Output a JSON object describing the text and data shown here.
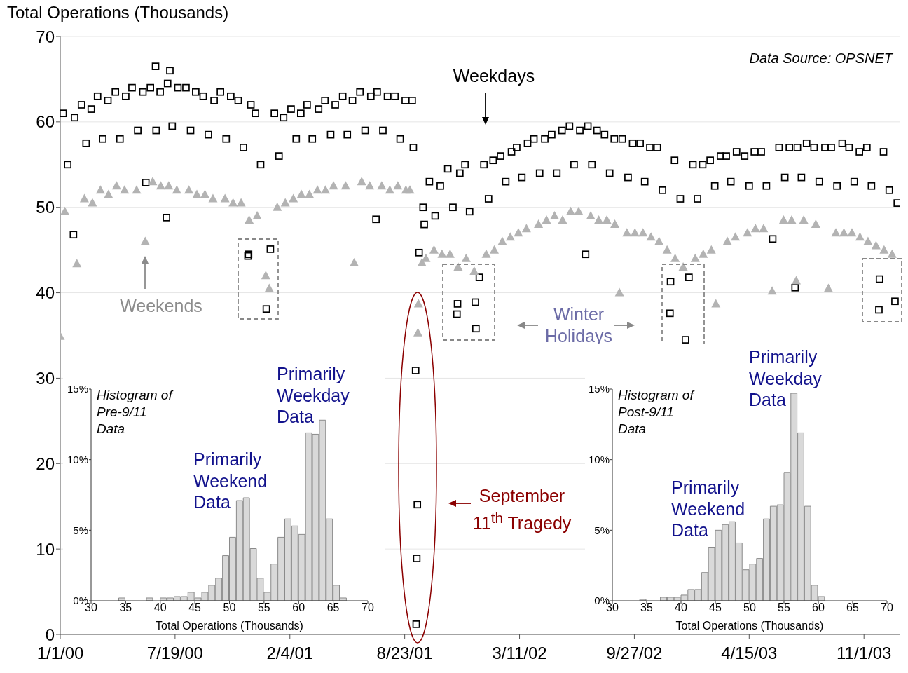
{
  "chart_data": [
    {
      "type": "scatter",
      "ylabel": "Total Operations (Thousands)",
      "xlim": [
        "2000-01-01",
        "2004-01-02"
      ],
      "ylim": [
        0,
        70
      ],
      "yticks": [
        0,
        10,
        20,
        30,
        40,
        50,
        60,
        70
      ],
      "xticks": [
        {
          "value": "2000-01-01",
          "label": "1/1/00"
        },
        {
          "value": "2000-07-19",
          "label": "7/19/00"
        },
        {
          "value": "2001-02-04",
          "label": "2/4/01"
        },
        {
          "value": "2001-08-23",
          "label": "8/23/01"
        },
        {
          "value": "2002-03-11",
          "label": "3/11/02"
        },
        {
          "value": "2002-09-27",
          "label": "9/27/02"
        },
        {
          "value": "2003-04-15",
          "label": "4/15/03"
        },
        {
          "value": "2003-11-01",
          "label": "11/1/03"
        }
      ],
      "grid": "y",
      "annotations": [
        "Data Source: OPSNET",
        "Weekdays",
        "Weekends",
        "Winter\nHolidays",
        "September\n11$^{th}$ Tragedy"
      ],
      "series": [
        {
          "color": "#000000",
          "marker": "square",
          "x": [
            "2000-01-06",
            "2000-01-14",
            "2000-01-24",
            "2000-01-26",
            "2000-02-07",
            "2000-02-15",
            "2000-02-24",
            "2000-03-06",
            "2000-03-15",
            "2000-03-24",
            "2000-04-06",
            "2000-04-14",
            "2000-04-24",
            "2000-05-05",
            "2000-05-15",
            "2000-05-24",
            "2000-05-29",
            "2000-06-06",
            "2000-06-15",
            "2000-06-16",
            "2000-06-23",
            "2000-07-04",
            "2000-07-06",
            "2000-07-10",
            "2000-07-14",
            "2000-07-24",
            "2000-08-07",
            "2000-08-15",
            "2000-08-24",
            "2000-09-06",
            "2000-09-15",
            "2000-09-25",
            "2000-10-06",
            "2000-10-16",
            "2000-10-24",
            "2000-11-06",
            "2000-11-15",
            "2000-11-23",
            "2000-11-24",
            "2000-11-28",
            "2000-12-06",
            "2000-12-15",
            "2000-12-25",
            "2001-01-01",
            "2001-01-08",
            "2001-01-16",
            "2001-01-24",
            "2001-02-06",
            "2001-02-15",
            "2001-02-23",
            "2001-03-06",
            "2001-03-15",
            "2001-03-26",
            "2001-04-06",
            "2001-04-16",
            "2001-04-24",
            "2001-05-07",
            "2001-05-15",
            "2001-05-24",
            "2001-06-06",
            "2001-06-15",
            "2001-06-25",
            "2001-07-04",
            "2001-07-06",
            "2001-07-16",
            "2001-07-24",
            "2001-08-06",
            "2001-08-15",
            "2001-08-24",
            "2001-09-05",
            "2001-09-07",
            "2001-09-11",
            "2001-09-12",
            "2001-09-13",
            "2001-09-14",
            "2001-09-17",
            "2001-09-24",
            "2001-09-26",
            "2001-10-05",
            "2001-10-15",
            "2001-10-24",
            "2001-11-06",
            "2001-11-15",
            "2001-11-22",
            "2001-11-23",
            "2001-11-27",
            "2001-12-06",
            "2001-12-14",
            "2001-12-24",
            "2001-12-25",
            "2001-12-31",
            "2002-01-08",
            "2002-01-16",
            "2002-01-24",
            "2002-02-06",
            "2002-02-15",
            "2002-02-25",
            "2002-03-06",
            "2002-03-15",
            "2002-03-25",
            "2002-04-05",
            "2002-04-15",
            "2002-04-24",
            "2002-05-06",
            "2002-05-15",
            "2002-05-24",
            "2002-06-06",
            "2002-06-14",
            "2002-06-24",
            "2002-07-04",
            "2002-07-08",
            "2002-07-15",
            "2002-07-24",
            "2002-08-06",
            "2002-08-15",
            "2002-08-23",
            "2002-09-06",
            "2002-09-16",
            "2002-09-24",
            "2002-10-07",
            "2002-10-15",
            "2002-10-24",
            "2002-11-06",
            "2002-11-15",
            "2002-11-28",
            "2002-11-29",
            "2002-12-06",
            "2002-12-16",
            "2002-12-25",
            "2002-12-31",
            "2003-01-07",
            "2003-01-15",
            "2003-01-24",
            "2003-02-06",
            "2003-02-14",
            "2003-02-24",
            "2003-03-06",
            "2003-03-14",
            "2003-03-24",
            "2003-04-07",
            "2003-04-15",
            "2003-04-24",
            "2003-05-06",
            "2003-05-15",
            "2003-05-26",
            "2003-06-06",
            "2003-06-16",
            "2003-06-24",
            "2003-07-04",
            "2003-07-08",
            "2003-07-15",
            "2003-07-24",
            "2003-08-06",
            "2003-08-15",
            "2003-08-25",
            "2003-09-05",
            "2003-09-15",
            "2003-09-24",
            "2003-10-06",
            "2003-10-15",
            "2003-10-24",
            "2003-11-06",
            "2003-11-14",
            "2003-11-27",
            "2003-11-28",
            "2003-12-05",
            "2003-12-15",
            "2003-12-25",
            "2003-12-29"
          ],
          "values": [
            61,
            55,
            46.8,
            60.5,
            62,
            57.5,
            61.5,
            63,
            58,
            62.5,
            63.5,
            58,
            63,
            64,
            59,
            63.5,
            52.9,
            64,
            66.5,
            59,
            63.5,
            48.8,
            64.5,
            66,
            59.5,
            64,
            64,
            59,
            63.5,
            63,
            58.5,
            62.5,
            63.5,
            58,
            63,
            62.5,
            57,
            44.3,
            44.5,
            62,
            61,
            55,
            38.1,
            45.1,
            61,
            56,
            60.5,
            61.5,
            58,
            61,
            62,
            58,
            61.5,
            62.5,
            58.5,
            62,
            63,
            58.5,
            62.5,
            63.5,
            59,
            63,
            48.6,
            63.5,
            59,
            63,
            63,
            58,
            62.5,
            62.5,
            57,
            30.9,
            1.2,
            8.9,
            15.2,
            44.7,
            50,
            48,
            53,
            49,
            52.5,
            54.5,
            50,
            37.5,
            38.7,
            54,
            55,
            49.5,
            38.9,
            35.8,
            41.8,
            55,
            51,
            55.5,
            56,
            53,
            56.5,
            57,
            53.5,
            57.5,
            58,
            54,
            58,
            58.5,
            54,
            59,
            59.5,
            55,
            59,
            44.5,
            59.5,
            55,
            59,
            58.5,
            54,
            58,
            58,
            53.5,
            57.5,
            57.5,
            53,
            57,
            57,
            52,
            37.6,
            41.3,
            55.5,
            51,
            34.5,
            41.8,
            55,
            51,
            55,
            55.5,
            52.5,
            56,
            56,
            53,
            56.5,
            56,
            52.5,
            56.5,
            56.5,
            52.5,
            46.3,
            57,
            53.5,
            57,
            40.6,
            57,
            53.5,
            57.5,
            57,
            53,
            57,
            57,
            52.5,
            57.5,
            57,
            53,
            56.5,
            57,
            52.5,
            38,
            41.6,
            56.5,
            52,
            39,
            50.5
          ]
        },
        {
          "color": "#b3b3b3",
          "marker": "triangle",
          "x": [
            "2000-01-01",
            "2000-01-09",
            "2000-01-30",
            "2000-02-12",
            "2000-02-26",
            "2000-03-11",
            "2000-03-25",
            "2000-04-08",
            "2000-04-22",
            "2000-05-13",
            "2000-05-28",
            "2000-06-10",
            "2000-06-24",
            "2000-07-08",
            "2000-07-22",
            "2000-08-12",
            "2000-08-26",
            "2000-09-09",
            "2000-09-23",
            "2000-10-14",
            "2000-10-28",
            "2000-11-11",
            "2000-11-25",
            "2000-12-09",
            "2000-12-24",
            "2000-12-30",
            "2001-01-13",
            "2001-01-27",
            "2001-02-10",
            "2001-02-24",
            "2001-03-10",
            "2001-03-24",
            "2001-04-07",
            "2001-04-21",
            "2001-05-12",
            "2001-05-27",
            "2001-06-09",
            "2001-06-23",
            "2001-07-14",
            "2001-07-28",
            "2001-08-11",
            "2001-08-25",
            "2001-09-01",
            "2001-09-15",
            "2001-09-16",
            "2001-09-22",
            "2001-09-29",
            "2001-10-13",
            "2001-10-27",
            "2001-11-10",
            "2001-11-24",
            "2001-12-08",
            "2001-12-22",
            "2002-01-12",
            "2002-01-26",
            "2002-02-09",
            "2002-02-23",
            "2002-03-09",
            "2002-03-23",
            "2002-04-13",
            "2002-04-27",
            "2002-05-11",
            "2002-05-25",
            "2002-06-08",
            "2002-06-22",
            "2002-07-13",
            "2002-07-27",
            "2002-08-10",
            "2002-08-24",
            "2002-09-01",
            "2002-09-14",
            "2002-09-28",
            "2002-10-12",
            "2002-10-26",
            "2002-11-09",
            "2002-11-23",
            "2002-12-07",
            "2002-12-21",
            "2003-01-11",
            "2003-01-25",
            "2003-02-08",
            "2003-02-16",
            "2003-03-08",
            "2003-03-22",
            "2003-04-12",
            "2003-04-26",
            "2003-05-10",
            "2003-05-25",
            "2003-06-14",
            "2003-06-28",
            "2003-07-06",
            "2003-07-19",
            "2003-08-09",
            "2003-08-31",
            "2003-09-13",
            "2003-09-27",
            "2003-10-11",
            "2003-10-25",
            "2003-11-08",
            "2003-11-22",
            "2003-12-06",
            "2003-12-20"
          ],
          "values": [
            34.9,
            49.5,
            43.4,
            51,
            50.5,
            52,
            51.5,
            52.5,
            52,
            52,
            46,
            53,
            52.5,
            52.5,
            52,
            52,
            51.5,
            51.5,
            51,
            51,
            50.5,
            50.5,
            48.5,
            49,
            42,
            40.5,
            50,
            50.5,
            51,
            51.5,
            51.5,
            52,
            52,
            52.5,
            52.5,
            43.5,
            53,
            52.5,
            52.5,
            52,
            52.5,
            52,
            52,
            35.3,
            38.7,
            43.5,
            44,
            45,
            44.5,
            44.5,
            43,
            44,
            42.5,
            44.5,
            45,
            46,
            46.5,
            47,
            47.5,
            48,
            48.5,
            49,
            48.5,
            49.5,
            49.5,
            49,
            48.5,
            48.5,
            48,
            40,
            47,
            47,
            47,
            46.5,
            46,
            45,
            44,
            43,
            44,
            44.5,
            45,
            38.7,
            46,
            46.5,
            47,
            47.5,
            47.5,
            40.2,
            48.5,
            48.5,
            41.4,
            48.5,
            48,
            40.5,
            47,
            47,
            47,
            46.5,
            46,
            45.5,
            45,
            44.5
          ]
        }
      ]
    },
    {
      "type": "histogram",
      "title": "Histogram of\nPre-9/11\nData",
      "xlabel": "Total Operations (Thousands)",
      "color": "#d9d9d9",
      "xlim": [
        30,
        70
      ],
      "xticks": [
        30,
        35,
        40,
        45,
        50,
        55,
        60,
        65,
        70
      ],
      "ylim": [
        0,
        15
      ],
      "yticks": [
        {
          "value": 0,
          "label": "0%"
        },
        {
          "value": 5,
          "label": "5%"
        },
        {
          "value": 10,
          "label": "10%"
        },
        {
          "value": 15,
          "label": "15%"
        }
      ],
      "annotations": [
        "Primarily\nWeekend\nData",
        "Primarily\nWeekday\nData"
      ],
      "bins": [
        30,
        31,
        32,
        33,
        34,
        35,
        36,
        37,
        38,
        39,
        40,
        41,
        42,
        43,
        44,
        45,
        46,
        47,
        48,
        49,
        50,
        51,
        52,
        53,
        54,
        55,
        56,
        57,
        58,
        59,
        60,
        61,
        62,
        63,
        64,
        65,
        66,
        67,
        68,
        69,
        70
      ],
      "values": [
        0,
        0,
        0,
        0,
        0.2,
        0,
        0,
        0,
        0.2,
        0,
        0.2,
        0.2,
        0.3,
        0.3,
        0.6,
        0.2,
        0.6,
        1.1,
        1.6,
        3.2,
        4.5,
        7.1,
        7.3,
        3.7,
        1.6,
        0.6,
        2.6,
        4.5,
        5.8,
        5.3,
        4.7,
        11.9,
        11.8,
        12.8,
        5.8,
        1.1,
        0.2,
        0,
        0,
        0
      ]
    },
    {
      "type": "histogram",
      "title": "Histogram of\nPost-9/11\nData",
      "xlabel": "Total Operations (Thousands)",
      "color": "#d9d9d9",
      "xlim": [
        30,
        70
      ],
      "xticks": [
        30,
        35,
        40,
        45,
        50,
        55,
        60,
        65,
        70
      ],
      "ylim": [
        0,
        15
      ],
      "yticks": [
        {
          "value": 0,
          "label": "0%"
        },
        {
          "value": 5,
          "label": "5%"
        },
        {
          "value": 10,
          "label": "10%"
        },
        {
          "value": 15,
          "label": "15%"
        }
      ],
      "annotations": [
        "Primarily\nWeekend\nData",
        "Primarily\nWeekday\nData"
      ],
      "bins": [
        30,
        31,
        32,
        33,
        34,
        35,
        36,
        37,
        38,
        39,
        40,
        41,
        42,
        43,
        44,
        45,
        46,
        47,
        48,
        49,
        50,
        51,
        52,
        53,
        54,
        55,
        56,
        57,
        58,
        59,
        60,
        61,
        62,
        63,
        64,
        65,
        66,
        67,
        68,
        69,
        70
      ],
      "values": [
        0,
        0,
        0,
        0,
        0.1,
        0,
        0,
        0.25,
        0.25,
        0.25,
        0.4,
        0.8,
        0.8,
        2,
        3.8,
        5,
        5.4,
        5.6,
        4.1,
        2.2,
        2.6,
        3,
        5.8,
        6.7,
        6.8,
        9.1,
        14.7,
        11.9,
        6.7,
        1.1,
        0.3,
        0,
        0,
        0,
        0,
        0,
        0,
        0,
        0,
        0
      ]
    }
  ]
}
